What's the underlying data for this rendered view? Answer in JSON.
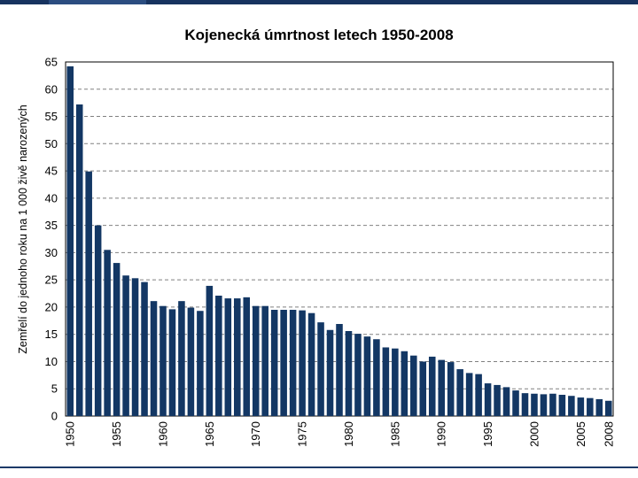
{
  "colors": {
    "bar": "#133764",
    "top_bar": "#17335f",
    "gridline": "#808080"
  },
  "chart_data": {
    "type": "bar",
    "title": "Kojenecká úmrtnost letech 1950-2008",
    "xlabel": "",
    "ylabel": "Zemřelí do jednoho roku na 1 000 živě narozených",
    "ylim": [
      0,
      65
    ],
    "yticks": [
      0,
      5,
      10,
      15,
      20,
      25,
      30,
      35,
      40,
      45,
      50,
      55,
      60,
      65
    ],
    "grid": true,
    "legend": "none",
    "xtick_labels": [
      "1950",
      "1955",
      "1960",
      "1965",
      "1970",
      "1975",
      "1980",
      "1985",
      "1990",
      "1995",
      "2000",
      "2005",
      "2008"
    ],
    "categories": [
      1950,
      1951,
      1952,
      1953,
      1954,
      1955,
      1956,
      1957,
      1958,
      1959,
      1960,
      1961,
      1962,
      1963,
      1964,
      1965,
      1966,
      1967,
      1968,
      1969,
      1970,
      1971,
      1972,
      1973,
      1974,
      1975,
      1976,
      1977,
      1978,
      1979,
      1980,
      1981,
      1982,
      1983,
      1984,
      1985,
      1986,
      1987,
      1988,
      1989,
      1990,
      1991,
      1992,
      1993,
      1994,
      1995,
      1996,
      1997,
      1998,
      1999,
      2000,
      2001,
      2002,
      2003,
      2004,
      2005,
      2006,
      2007,
      2008
    ],
    "values": [
      64.2,
      57.2,
      44.9,
      35.0,
      30.5,
      28.1,
      25.8,
      25.3,
      24.6,
      21.1,
      20.2,
      19.6,
      21.1,
      19.9,
      19.3,
      23.9,
      22.1,
      21.6,
      21.6,
      21.8,
      20.2,
      20.2,
      19.5,
      19.5,
      19.5,
      19.4,
      18.9,
      17.2,
      15.8,
      16.9,
      15.6,
      15.1,
      14.6,
      14.1,
      12.6,
      12.4,
      11.9,
      11.1,
      10.0,
      10.9,
      10.3,
      9.9,
      8.6,
      7.9,
      7.7,
      6.0,
      5.7,
      5.3,
      4.7,
      4.2,
      4.1,
      4.0,
      4.1,
      3.9,
      3.7,
      3.4,
      3.3,
      3.1,
      2.8
    ]
  }
}
